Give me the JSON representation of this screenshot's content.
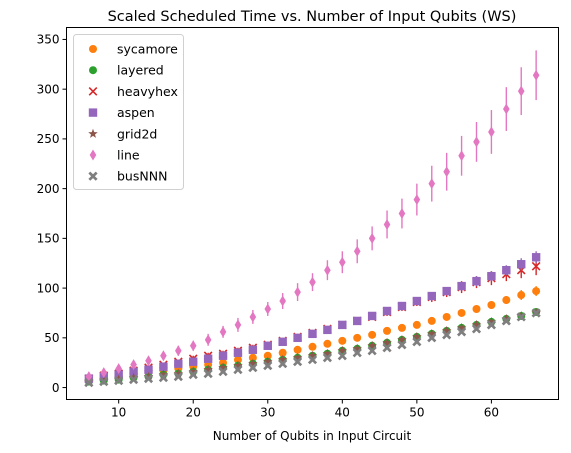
{
  "chart_data": {
    "type": "scatter",
    "title": "Scaled Scheduled Time vs. Number of Input Qubits (WS)",
    "xlabel": "Number of Qubits in Input Circuit",
    "ylabel": "",
    "xlim": [
      3,
      69
    ],
    "ylim": [
      -12,
      362
    ],
    "xticks": [
      10,
      20,
      30,
      40,
      50,
      60
    ],
    "yticks": [
      0,
      50,
      100,
      150,
      200,
      250,
      300,
      350
    ],
    "grid": false,
    "legend_position": "upper-left",
    "x": [
      6,
      8,
      10,
      12,
      14,
      16,
      18,
      20,
      22,
      24,
      26,
      28,
      30,
      32,
      34,
      36,
      38,
      40,
      42,
      44,
      46,
      48,
      50,
      52,
      54,
      56,
      58,
      60,
      62,
      64,
      66
    ],
    "series": [
      {
        "name": "sycamore",
        "marker": "circle",
        "color": "#ff7f0e",
        "values": [
          7,
          9,
          11,
          13,
          15,
          17,
          19,
          21,
          23,
          25,
          28,
          30,
          32,
          35,
          38,
          41,
          44,
          47,
          50,
          53,
          57,
          60,
          63,
          67,
          71,
          75,
          79,
          83,
          88,
          93,
          97
        ],
        "errors": [
          1.5,
          1.5,
          1.5,
          1.5,
          1.5,
          1.5,
          1.5,
          1.5,
          2,
          2,
          2,
          2,
          2,
          2,
          2,
          2,
          2,
          2,
          2,
          2,
          2,
          3,
          3,
          3,
          3,
          3,
          3,
          4,
          4,
          5,
          5
        ]
      },
      {
        "name": "layered",
        "marker": "circle",
        "color": "#2ca02c",
        "values": [
          6,
          7,
          8,
          10,
          11,
          13,
          14,
          16,
          18,
          20,
          22,
          24,
          26,
          28,
          30,
          32,
          34,
          37,
          39,
          42,
          45,
          48,
          51,
          54,
          57,
          60,
          63,
          66,
          69,
          72,
          76
        ],
        "errors": [
          1,
          1,
          1,
          1,
          1,
          1,
          1,
          1,
          1,
          1,
          1,
          1,
          1,
          1,
          1,
          1,
          1,
          1,
          1,
          1,
          1.5,
          1.5,
          1.5,
          1.5,
          1.5,
          1.5,
          2,
          2,
          2,
          2,
          2
        ]
      },
      {
        "name": "heavyhex",
        "marker": "x",
        "color": "#d62728",
        "values": [
          9,
          12,
          14,
          17,
          20,
          23,
          26,
          29,
          32,
          34,
          37,
          40,
          43,
          47,
          51,
          55,
          59,
          63,
          67,
          71,
          76,
          81,
          86,
          91,
          96,
          101,
          106,
          110,
          114,
          118,
          122
        ],
        "errors": [
          2,
          2,
          2,
          2,
          2,
          2,
          2,
          3,
          3,
          3,
          3,
          3,
          3,
          3,
          3,
          3,
          3,
          3,
          3,
          3,
          4,
          4,
          4,
          5,
          5,
          6,
          6,
          7,
          7,
          8,
          9
        ]
      },
      {
        "name": "aspen",
        "marker": "square",
        "color": "#9467bd",
        "values": [
          9,
          11,
          13,
          16,
          18,
          21,
          24,
          26,
          29,
          32,
          35,
          38,
          42,
          46,
          50,
          54,
          58,
          63,
          67,
          72,
          77,
          82,
          87,
          92,
          97,
          102,
          107,
          112,
          118,
          124,
          131
        ],
        "errors": [
          1.5,
          1.5,
          1.5,
          1.5,
          1.5,
          1.5,
          1.5,
          2,
          2,
          2,
          2,
          2,
          2,
          2,
          2,
          2,
          3,
          3,
          3,
          3,
          3,
          4,
          4,
          4,
          4,
          4,
          5,
          5,
          5,
          6,
          6
        ]
      },
      {
        "name": "grid2d",
        "marker": "star",
        "color": "#8c564b",
        "values": [
          6,
          7,
          8,
          10,
          11,
          13,
          14,
          16,
          18,
          20,
          22,
          24,
          26,
          28,
          30,
          32,
          34,
          37,
          39,
          42,
          45,
          48,
          51,
          54,
          57,
          60,
          63,
          66,
          69,
          72,
          75
        ],
        "errors": [
          1,
          1,
          1,
          1,
          1,
          1,
          1,
          1,
          1,
          1,
          1,
          1,
          1,
          1,
          1,
          1,
          1,
          1,
          1,
          1,
          1.5,
          1.5,
          1.5,
          1.5,
          1.5,
          1.5,
          2,
          2,
          2,
          2,
          2
        ]
      },
      {
        "name": "line",
        "marker": "thin-diamond",
        "color": "#e377c2",
        "values": [
          11,
          15,
          19,
          23,
          27,
          32,
          37,
          42,
          48,
          56,
          63,
          71,
          79,
          87,
          96,
          106,
          118,
          126,
          137,
          150,
          164,
          175,
          189,
          205,
          217,
          233,
          247,
          257,
          280,
          298,
          314
        ],
        "errors": [
          2,
          3,
          3,
          4,
          4,
          4,
          5,
          5,
          6,
          6,
          7,
          7,
          7,
          8,
          9,
          9,
          10,
          11,
          12,
          12,
          14,
          15,
          16,
          18,
          19,
          20,
          20,
          22,
          22,
          24,
          25
        ]
      },
      {
        "name": "busNNN",
        "marker": "x-filled",
        "color": "#7f7f7f",
        "values": [
          5,
          6,
          7,
          8,
          9,
          10,
          11,
          13,
          14,
          16,
          18,
          20,
          22,
          24,
          26,
          28,
          30,
          32,
          35,
          37,
          40,
          43,
          46,
          50,
          53,
          56,
          59,
          63,
          67,
          71,
          75
        ],
        "errors": [
          1,
          1,
          1,
          1,
          1,
          1,
          1,
          1,
          1,
          1,
          1,
          1,
          1,
          1,
          1,
          1,
          1,
          1,
          1,
          1,
          1.5,
          1.5,
          1.5,
          1.5,
          1.5,
          1.5,
          2,
          2,
          2,
          2,
          2
        ]
      }
    ]
  }
}
